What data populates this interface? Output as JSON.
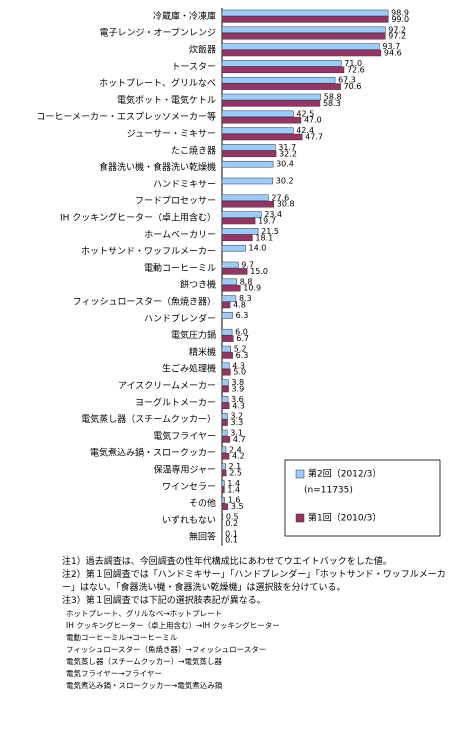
{
  "chart_data": {
    "type": "hbar",
    "categories": [
      "冷蔵庫・冷凍庫",
      "電子レンジ・オーブンレンジ",
      "炊飯器",
      "トースター",
      "ホットプレート、グリルなべ",
      "電気ポット・電気ケトル",
      "コーヒーメーカー・エスプレッソメーカー等",
      "ジューサー・ミキサー",
      "たこ焼き器",
      "食器洗い機・食器洗い乾燥機",
      "ハンドミキサー",
      "フードプロセッサー",
      "IH クッキングヒーター（卓上用含む）",
      "ホームベーカリー",
      "ホットサンド・ワッフルメーカー",
      "電動コーヒーミル",
      "餅つき機",
      "フィッシュロースター（魚焼き器）",
      "ハンドブレンダー",
      "電気圧力鍋",
      "精米機",
      "生ごみ処理機",
      "アイスクリームメーカー",
      "ヨーグルトメーカー",
      "電気蒸し器（スチームクッカー）",
      "電気フライヤー",
      "電気煮込み鍋・スロークッカー",
      "保温専用ジャー",
      "ワインセラー",
      "その他",
      "いずれもない",
      "無回答"
    ],
    "series": [
      {
        "name": "第2回（2012/3）",
        "sample": "(n=11735)",
        "color": "#99ccff",
        "values": [
          98.9,
          97.2,
          93.7,
          71,
          67.3,
          58.8,
          42.5,
          42.4,
          31.7,
          30.4,
          30.2,
          27.6,
          23.4,
          21.5,
          14,
          9.7,
          8.8,
          8.3,
          6.3,
          6,
          5.2,
          4.3,
          3.8,
          3.6,
          3.2,
          3.1,
          2.4,
          2.1,
          1.4,
          1.6,
          0.5,
          0.1
        ],
        "value_labels": [
          "98.9",
          "97.2",
          "93.7",
          "71.0",
          "67.3",
          "58.8",
          "42.5",
          "42.4",
          "31.7",
          "30.4",
          "30.2",
          "27.6",
          "23.4",
          "21.5",
          "14.0",
          "9.7",
          "8.8",
          "8.3",
          "6.3",
          "6.0",
          "5.2",
          "4.3",
          "3.8",
          "3.6",
          "3.2",
          "3.1",
          "2.4",
          "2.1",
          "1.4",
          "1.6",
          "0.5",
          "0.1"
        ]
      },
      {
        "name": "第1回（2010/3）",
        "color": "#993366",
        "values": [
          99,
          97.2,
          94.6,
          72.6,
          70.6,
          58.3,
          47,
          47.7,
          32.2,
          null,
          null,
          30.8,
          19.7,
          18.1,
          null,
          15,
          10.9,
          4.8,
          null,
          6.7,
          6.3,
          5,
          3.9,
          4.3,
          3.3,
          4.7,
          4.2,
          2.5,
          1.4,
          3.5,
          0.2,
          0.1
        ],
        "value_labels": [
          "99.0",
          "97.2",
          "94.6",
          "72.6",
          "70.6",
          "58.3",
          "47.0",
          "47.7",
          "32.2",
          null,
          null,
          "30.8",
          "19.7",
          "18.1",
          null,
          "15.0",
          "10.9",
          "4.8",
          null,
          "6.7",
          "6.3",
          "5.0",
          "3.9",
          "4.3",
          "3.3",
          "4.7",
          "4.2",
          "2.5",
          "1.4",
          "3.5",
          "0.2",
          "0.1"
        ]
      }
    ],
    "xlim": [
      0,
      100
    ]
  },
  "notes": [
    "注1）過去調査は、今回調査の性年代構成比にあわせてウエイトバックをした値。",
    "注2）第１回調査では「ハンドミキサー」「ハンドブレンダー」「ホットサンド・ワッフルメーカー」はない。「食器洗い機・食器洗い乾燥機」は選択肢を分けている。",
    "注3）第１回調査では下記の選択肢表記が異なる。"
  ],
  "mappings": [
    "ホットプレート、グリルなべ→ホットプレート",
    "IH クッキングヒーター（卓上用含む）→IH クッキングヒーター",
    "電動コーヒーミル→コーヒーミル",
    "フィッシュロースター（魚焼き器）→フィッシュロースター",
    "電気蒸し器（スチームクッカー）→電気蒸し器",
    "電気フライヤー→フライヤー",
    "電気煮込み鍋・スロークッカー→電気煮込み鍋"
  ]
}
